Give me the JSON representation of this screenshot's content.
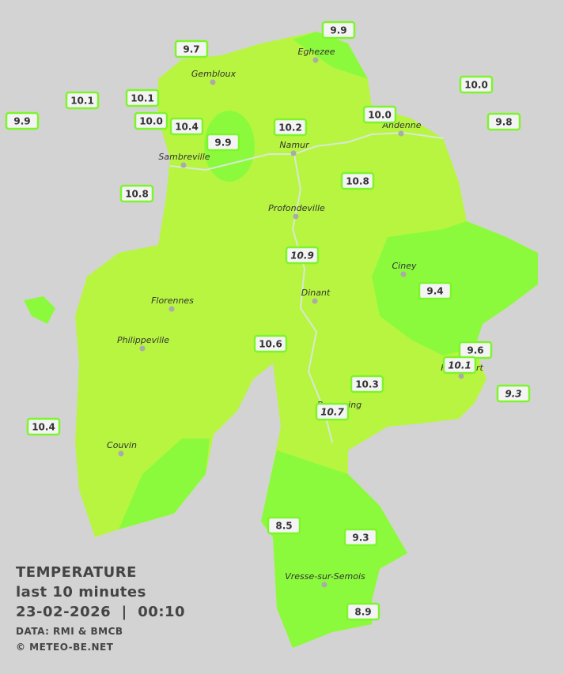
{
  "title": "TEMPERATURE",
  "subtitle": "last 10 minutes",
  "date": "23-02-2026  |  00:10",
  "source": "DATA: RMI & BMCB",
  "credit": "© METEO-BE.NET",
  "cities": [
    "Eghezee",
    "Gembloux",
    "Andenne",
    "Namur",
    "Sambreville",
    "Profondeville",
    "Ciney",
    "Dinant",
    "Florennes",
    "Philippeville",
    "Rochefort",
    "Beauraing",
    "Couvin",
    "Vresse-sur-Semois"
  ],
  "stations": [
    "9.9",
    "9.7",
    "10.0",
    "10.1",
    "10.1",
    "9.9",
    "10.0",
    "10.4",
    "9.9",
    "10.2",
    "10.0",
    "9.8",
    "10.8",
    "10.8",
    "10.9",
    "9.4",
    "10.6",
    "9.6",
    "10.1",
    "9.3",
    "10.3",
    "10.7",
    "10.4",
    "8.5",
    "9.3",
    "8.9"
  ]
}
